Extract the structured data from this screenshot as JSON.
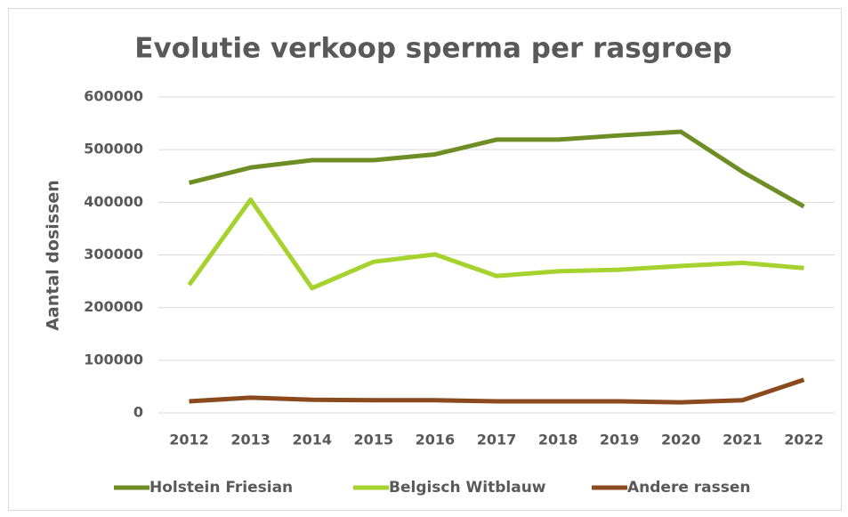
{
  "chart_data": {
    "type": "line",
    "title": "Evolutie verkoop sperma per rasgroep",
    "y_label": "Aantal dosissen",
    "categories": [
      "2012",
      "2013",
      "2014",
      "2015",
      "2016",
      "2017",
      "2018",
      "2019",
      "2020",
      "2021",
      "2022"
    ],
    "series": [
      {
        "name": "Holstein Friesian",
        "color": "#6e8e25",
        "values": [
          437000,
          466000,
          480000,
          480000,
          491000,
          519000,
          519000,
          527000,
          534000,
          458000,
          392000
        ]
      },
      {
        "name": "Belgisch Witblauw",
        "color": "#a5d22d",
        "values": [
          243000,
          405000,
          237000,
          287000,
          301000,
          260000,
          269000,
          272000,
          279000,
          285000,
          275000
        ]
      },
      {
        "name": "Andere rassen",
        "color": "#8b4a1e",
        "values": [
          22000,
          29000,
          25000,
          24000,
          24000,
          22000,
          22000,
          22000,
          20000,
          24000,
          63000
        ]
      }
    ],
    "ylim": [
      0,
      600000
    ],
    "yticks": [
      0,
      100000,
      200000,
      300000,
      400000,
      500000,
      600000
    ],
    "grid": true,
    "legend": "bottom"
  }
}
